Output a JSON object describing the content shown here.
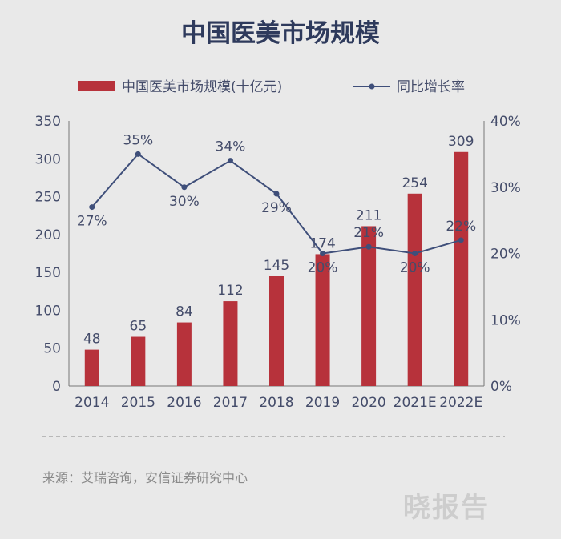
{
  "chart_data": {
    "type": "bar",
    "title": "中国医美市场规模",
    "categories": [
      "2014",
      "2015",
      "2016",
      "2017",
      "2018",
      "2019",
      "2020",
      "2021E",
      "2022E"
    ],
    "series": [
      {
        "name": "中国医美市场规模(十亿元)",
        "type": "bar",
        "axis": "left",
        "values": [
          48,
          65,
          84,
          112,
          145,
          174,
          211,
          254,
          309
        ],
        "labels": [
          "48",
          "65",
          "84",
          "112",
          "145",
          "174",
          "211",
          "254",
          "309"
        ]
      },
      {
        "name": "同比增长率",
        "type": "line",
        "axis": "right",
        "values": [
          27,
          35,
          30,
          34,
          29,
          20,
          21,
          20,
          22
        ],
        "labels": [
          "27%",
          "35%",
          "30%",
          "34%",
          "29%",
          "20%",
          "21%",
          "20%",
          "22%"
        ]
      }
    ],
    "left_axis": {
      "ylim": [
        0,
        350
      ],
      "ticks": [
        "0",
        "50",
        "100",
        "150",
        "200",
        "250",
        "300",
        "350"
      ]
    },
    "right_axis": {
      "ylim": [
        0,
        40
      ],
      "ticks": [
        "0%",
        "10%",
        "20%",
        "30%",
        "40%"
      ]
    },
    "legend_position": "top",
    "grid": false,
    "colors": {
      "bar": "#b7323b",
      "line": "#3f4f7a",
      "text": "#444c6a",
      "title": "#2e3a5c"
    }
  },
  "footer": {
    "source": "来源：艾瑞咨询，安信证券研究中心",
    "watermark": "晓报告"
  }
}
